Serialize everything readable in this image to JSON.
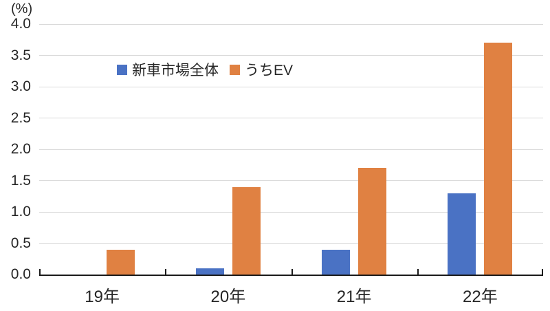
{
  "chart_data": {
    "type": "bar",
    "title": "",
    "unit_label": "(%)",
    "categories": [
      "19年",
      "20年",
      "21年",
      "22年"
    ],
    "series": [
      {
        "name": "新車市場全体",
        "color": "#4a72c4",
        "values": [
          0,
          0.1,
          0.4,
          1.3
        ]
      },
      {
        "name": "うちEV",
        "color": "#e08142",
        "values": [
          0.4,
          1.4,
          1.7,
          3.7
        ]
      }
    ],
    "ylim": [
      0,
      4.0
    ],
    "ytick_step": 0.5,
    "ytick_labels": [
      "0.0",
      "0.5",
      "1.0",
      "1.5",
      "2.0",
      "2.5",
      "3.0",
      "3.5",
      "4.0"
    ],
    "grid": true,
    "legend_position": "inside-top-left",
    "colors": {
      "background": "#ffffff",
      "gridline": "#d9d9d9",
      "axis": "#1a1a1a",
      "text": "#262626"
    }
  }
}
